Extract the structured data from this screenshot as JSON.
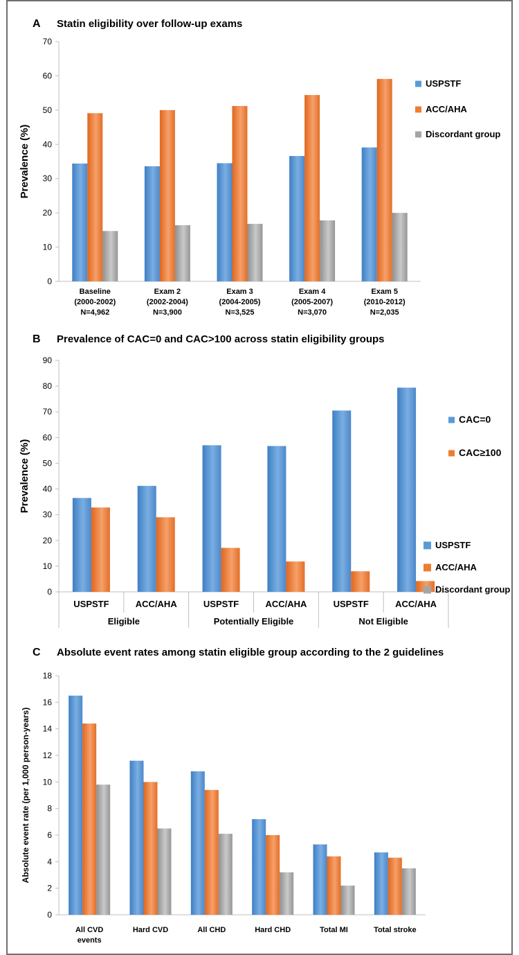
{
  "colors": {
    "series_1": "#5B9BD5",
    "series_2": "#ED7D31",
    "series_3": "#A5A5A5",
    "frame": "#6E6E6E",
    "axis": "#BFBFBF"
  },
  "chart_data": [
    {
      "id": "A",
      "type": "bar",
      "panel_letter": "A",
      "title": "Statin eligibility over follow-up exams",
      "ylabel": "Prevalence (%)",
      "xlabel": "",
      "ylim": [
        0,
        70
      ],
      "yticks": [
        0,
        10,
        20,
        30,
        40,
        50,
        60,
        70
      ],
      "grid": false,
      "legend_position": "right",
      "categories": [
        [
          "Baseline",
          "(2000-2002)",
          "N=4,962"
        ],
        [
          "Exam 2",
          "(2002-2004)",
          "N=3,900"
        ],
        [
          "Exam 3",
          "(2004-2005)",
          "N=3,525"
        ],
        [
          "Exam 4",
          "(2005-2007)",
          "N=3,070"
        ],
        [
          "Exam 5",
          "(2010-2012)",
          "N=2,035"
        ]
      ],
      "series": [
        {
          "name": "USPSTF",
          "values": [
            34.4,
            33.6,
            34.5,
            36.6,
            39.1
          ]
        },
        {
          "name": "ACC/AHA",
          "values": [
            49.1,
            50.0,
            51.2,
            54.4,
            59.1
          ]
        },
        {
          "name": "Discordant group",
          "values": [
            14.7,
            16.4,
            16.8,
            17.8,
            20.0
          ]
        }
      ]
    },
    {
      "id": "B",
      "type": "bar",
      "panel_letter": "B",
      "title": "Prevalence of CAC=0 and CAC>100 across statin eligibility groups",
      "ylabel": "Prevalence (%)",
      "xlabel": "",
      "ylim": [
        0,
        90
      ],
      "yticks": [
        0,
        10,
        20,
        30,
        40,
        50,
        60,
        70,
        80,
        90
      ],
      "grid": false,
      "legend_position": "right",
      "categories": [
        "USPSTF",
        "ACC/AHA",
        "USPSTF",
        "ACC/AHA",
        "USPSTF",
        "ACC/AHA"
      ],
      "groups": [
        "Eligible",
        "Potentially Eligible",
        "Not Eligible"
      ],
      "series": [
        {
          "name": "CAC=0",
          "values": [
            36.5,
            41.2,
            57.0,
            56.7,
            70.5,
            79.4
          ]
        },
        {
          "name": "CAC≥100",
          "values": [
            32.8,
            29.0,
            17.1,
            11.8,
            8.0,
            4.2
          ]
        }
      ]
    },
    {
      "id": "C",
      "type": "bar",
      "panel_letter": "C",
      "title": "Absolute event rates among statin eligible group according to the 2 guidelines",
      "ylabel": "Absolute event rate (per 1,000 person-years)",
      "xlabel": "",
      "ylim": [
        0,
        18
      ],
      "yticks": [
        0,
        2,
        4,
        6,
        8,
        10,
        12,
        14,
        16,
        18
      ],
      "grid": false,
      "legend_position": "right",
      "categories": [
        [
          "All CVD",
          "events"
        ],
        [
          "Hard CVD"
        ],
        [
          "All CHD"
        ],
        [
          "Hard CHD"
        ],
        [
          "Total MI"
        ],
        [
          "Total stroke"
        ]
      ],
      "series": [
        {
          "name": "USPSTF",
          "values": [
            16.5,
            11.6,
            10.8,
            7.2,
            5.3,
            4.7
          ]
        },
        {
          "name": "ACC/AHA",
          "values": [
            14.4,
            10.0,
            9.4,
            6.0,
            4.4,
            4.3
          ]
        },
        {
          "name": "Discordant group",
          "values": [
            9.8,
            6.5,
            6.1,
            3.2,
            2.2,
            3.5
          ]
        }
      ]
    }
  ]
}
